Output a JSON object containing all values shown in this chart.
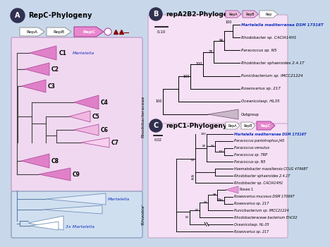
{
  "bg_outer": "#c8d8ea",
  "bg_rhodo": "#f0d8f0",
  "bg_rhizo": "#d0dff0",
  "bg_panel_bc": "#f5e0f5",
  "pink_tri": "#e080c8",
  "pink_tri_ec": "#b050a0",
  "light_pink_tri": "#f0c0e0",
  "blue_tri_ec": "#7090b8",
  "blue_tri_fc": "#e0eaf8",
  "dark_gray": "#303030",
  "blue_label": "#1030c0",
  "badge_color": "#303050",
  "title_A": "RepC-Phylogeny",
  "title_B": "repA2B2-Phylogeny",
  "title_C": "repC1-Phylogeny",
  "panel_B_taxa": [
    "Martelella mediterranea DSM 17316T",
    "Rhodobacter sp. CACIA14H1",
    "Paracoccus sp. N5",
    "Rhodobacter sphaeroides 2.4.1T",
    "Punicibacterium sp. IMCC21224",
    "Roseovarius sp. 217",
    "Oceanicolasp. HL35",
    "Outgroup"
  ],
  "panel_C_taxa": [
    "Martelella mediterranea DSM 17316T",
    "Paracoccus pantotrophus J40",
    "Paracoccus versutus",
    "Paracoccus sp. TRP",
    "Paracoccus sp. N5",
    "Haematobacter massiliensis CCUG 47968T",
    "Rhodobacter sphaeroides 2.4.1T",
    "Rhodobacter sp. CACIA14H1",
    "Roseo 1",
    "Roseovarius mucosus DSM 17069T",
    "Roseovarius sp. 217",
    "Punicibacterium sp. IMCC21224",
    "Rhodobacteraceae bacterium EhC02",
    "Oceanicolasp. HL-35",
    "Roseovarius sp. 217"
  ]
}
